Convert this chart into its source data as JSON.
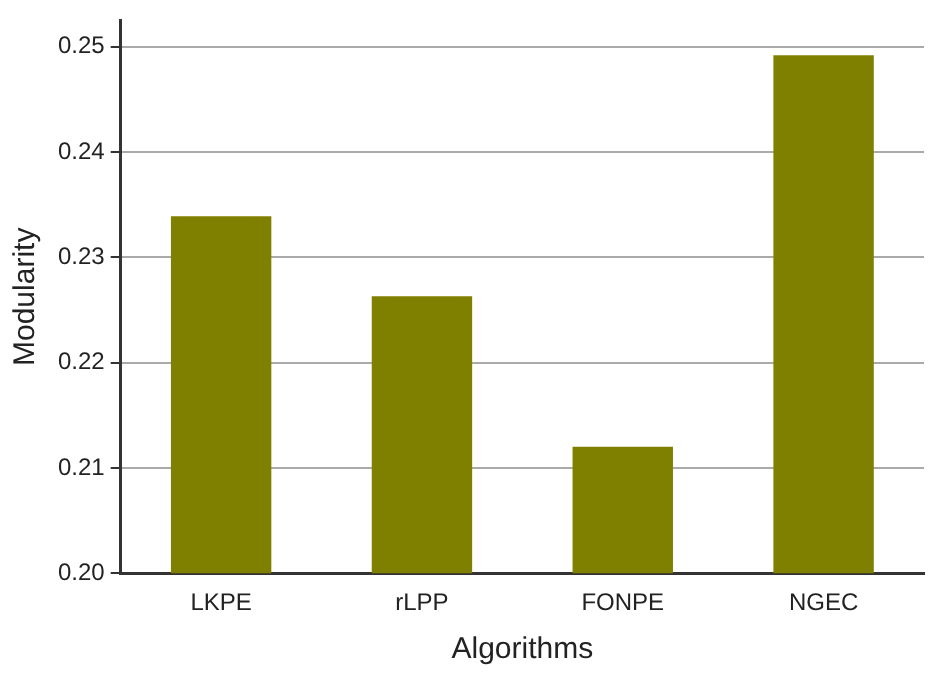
{
  "chart_data": {
    "type": "bar",
    "xlabel": "Algorithms",
    "ylabel": "Modularity",
    "categories": [
      "LKPE",
      "rLPP",
      "FONPE",
      "NGEC"
    ],
    "values": [
      0.2339,
      0.2263,
      0.212,
      0.2492
    ],
    "color": "#808000",
    "ylim": [
      0.2,
      0.2525
    ],
    "yticks": [
      {
        "value": 0.2,
        "label": "0.20"
      },
      {
        "value": 0.21,
        "label": "0.21"
      },
      {
        "value": 0.22,
        "label": "0.22"
      },
      {
        "value": 0.23,
        "label": "0.23"
      },
      {
        "value": 0.24,
        "label": "0.24"
      },
      {
        "value": 0.25,
        "label": "0.25"
      }
    ],
    "grid": "y",
    "legend": false
  }
}
